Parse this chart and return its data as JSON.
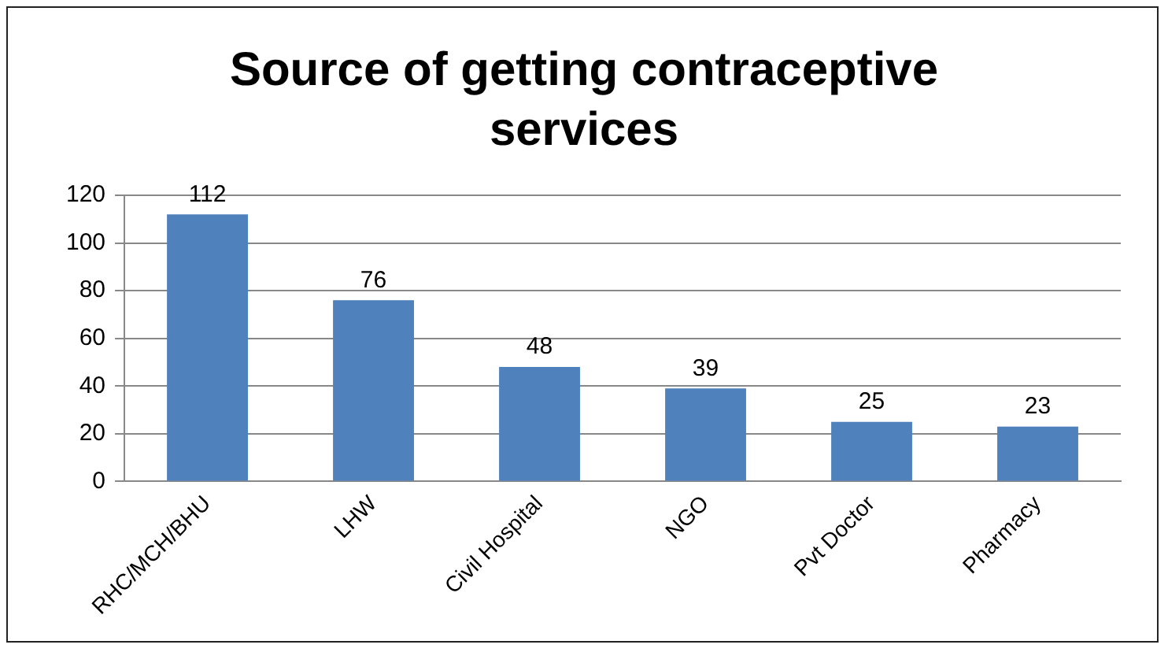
{
  "chart_data": {
    "type": "bar",
    "title": "Source of getting contraceptive services",
    "categories": [
      "RHC/MCH/BHU",
      "LHW",
      "Civil Hospital",
      "NGO",
      "Pvt Doctor",
      "Pharmacy"
    ],
    "values": [
      112,
      76,
      48,
      39,
      25,
      23
    ],
    "color": "#4f81bd",
    "ylim": [
      0,
      120
    ],
    "yticks": [
      0,
      20,
      40,
      60,
      80,
      100,
      120
    ],
    "grid": "y",
    "legend": false,
    "data_labels": true
  }
}
